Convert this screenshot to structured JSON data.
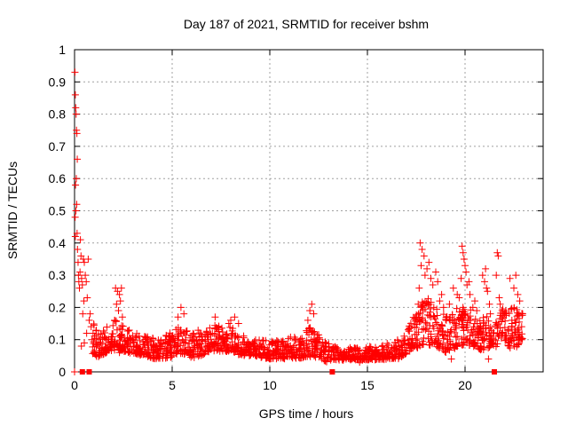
{
  "chart_data": {
    "type": "scatter",
    "title": "Day 187 of 2021, SRMTID for receiver bshm",
    "xlabel": "GPS time / hours",
    "ylabel": "SRMTID / TECUs",
    "xlim": [
      0,
      24
    ],
    "ylim": [
      0,
      1
    ],
    "x_ticks": [
      0,
      5,
      10,
      15,
      20
    ],
    "y_ticks": [
      0,
      0.1,
      0.2,
      0.3,
      0.4,
      0.5,
      0.6,
      0.7,
      0.8,
      0.9,
      1
    ],
    "x_tick_labels": [
      "0",
      "5",
      "10",
      "15",
      "20"
    ],
    "y_tick_labels": [
      "0",
      "0.1",
      "0.2",
      "0.3",
      "0.4",
      "0.5",
      "0.6",
      "0.7",
      "0.8",
      "0.9",
      "1"
    ],
    "grid": true,
    "marker_color": "#ff0000",
    "series": [
      {
        "name": "SRMTID",
        "marker": "plus",
        "points": [
          [
            0.02,
            0.93
          ],
          [
            0.04,
            0.86
          ],
          [
            0.06,
            0.82
          ],
          [
            0.08,
            0.8
          ],
          [
            0.1,
            0.75
          ],
          [
            0.12,
            0.74
          ],
          [
            0.14,
            0.66
          ],
          [
            0.05,
            0.58
          ],
          [
            0.09,
            0.6
          ],
          [
            0.03,
            0.48
          ],
          [
            0.07,
            0.5
          ],
          [
            0.11,
            0.52
          ],
          [
            0.13,
            0.43
          ],
          [
            0.04,
            0.42
          ],
          [
            0.15,
            0.38
          ],
          [
            0.18,
            0.34
          ],
          [
            0.2,
            0.3
          ],
          [
            0.22,
            0.28
          ],
          [
            0.25,
            0.26
          ],
          [
            0.28,
            0.31
          ],
          [
            0.3,
            0.41
          ],
          [
            0.33,
            0.36
          ],
          [
            0.36,
            0.29
          ],
          [
            0.4,
            0.27
          ],
          [
            0.45,
            0.35
          ],
          [
            0.5,
            0.34
          ],
          [
            0.55,
            0.3
          ],
          [
            0.6,
            0.28
          ],
          [
            0.65,
            0.23
          ],
          [
            0.7,
            0.35
          ],
          [
            0.42,
            0.18
          ],
          [
            0.48,
            0.22
          ],
          [
            0.75,
            0.16
          ],
          [
            0.8,
            0.18
          ],
          [
            0.85,
            0.14
          ],
          [
            0.35,
            0.08
          ],
          [
            0.5,
            0.09
          ],
          [
            0.62,
            0.12
          ],
          [
            0.9,
            0.1
          ],
          [
            0.95,
            0.12
          ],
          [
            2.1,
            0.26
          ],
          [
            2.2,
            0.25
          ],
          [
            2.3,
            0.24
          ],
          [
            2.4,
            0.26
          ],
          [
            2.15,
            0.21
          ],
          [
            2.25,
            0.19
          ],
          [
            2.35,
            0.22
          ],
          [
            2.45,
            0.17
          ],
          [
            2.05,
            0.16
          ],
          [
            5.45,
            0.2
          ],
          [
            5.6,
            0.18
          ],
          [
            5.3,
            0.17
          ],
          [
            7.2,
            0.17
          ],
          [
            8.0,
            0.16
          ],
          [
            8.2,
            0.17
          ],
          [
            8.4,
            0.15
          ],
          [
            7.9,
            0.15
          ],
          [
            12.05,
            0.19
          ],
          [
            12.15,
            0.21
          ],
          [
            12.25,
            0.18
          ],
          [
            11.95,
            0.16
          ],
          [
            17.7,
            0.4
          ],
          [
            17.8,
            0.38
          ],
          [
            17.9,
            0.36
          ],
          [
            17.75,
            0.33
          ],
          [
            17.95,
            0.3
          ],
          [
            18.05,
            0.32
          ],
          [
            18.15,
            0.34
          ],
          [
            18.25,
            0.29
          ],
          [
            18.35,
            0.27
          ],
          [
            17.65,
            0.26
          ],
          [
            18.5,
            0.31
          ],
          [
            18.6,
            0.28
          ],
          [
            18.7,
            0.22
          ],
          [
            18.8,
            0.24
          ],
          [
            18.4,
            0.2
          ],
          [
            18.9,
            0.2
          ],
          [
            17.6,
            0.21
          ],
          [
            17.85,
            0.19
          ],
          [
            19.2,
            0.21
          ],
          [
            19.4,
            0.26
          ],
          [
            19.6,
            0.24
          ],
          [
            19.85,
            0.39
          ],
          [
            19.9,
            0.37
          ],
          [
            19.95,
            0.35
          ],
          [
            20.0,
            0.33
          ],
          [
            20.05,
            0.31
          ],
          [
            19.8,
            0.29
          ],
          [
            20.1,
            0.27
          ],
          [
            20.2,
            0.28
          ],
          [
            20.25,
            0.24
          ],
          [
            19.7,
            0.23
          ],
          [
            20.4,
            0.2
          ],
          [
            20.5,
            0.22
          ],
          [
            20.6,
            0.19
          ],
          [
            21.0,
            0.28
          ],
          [
            21.1,
            0.26
          ],
          [
            20.9,
            0.3
          ],
          [
            21.05,
            0.32
          ],
          [
            21.15,
            0.25
          ],
          [
            21.25,
            0.21
          ],
          [
            21.3,
            0.18
          ],
          [
            21.65,
            0.37
          ],
          [
            21.7,
            0.36
          ],
          [
            21.6,
            0.3
          ],
          [
            21.75,
            0.23
          ],
          [
            21.8,
            0.21
          ],
          [
            21.9,
            0.19
          ],
          [
            22.3,
            0.29
          ],
          [
            22.5,
            0.26
          ],
          [
            22.6,
            0.3
          ],
          [
            22.7,
            0.24
          ],
          [
            22.8,
            0.22
          ],
          [
            22.4,
            0.16
          ],
          [
            22.2,
            0.13
          ],
          [
            22.9,
            0.14
          ],
          [
            22.95,
            0.18
          ],
          [
            0.0,
            0.0
          ],
          [
            2.3,
            0.06
          ],
          [
            5.0,
            0.05
          ],
          [
            10.0,
            0.04
          ],
          [
            14.6,
            0.03
          ],
          [
            19.3,
            0.04
          ],
          [
            21.2,
            0.04
          ]
        ],
        "envelope": [
          [
            0.9,
            0.04,
            0.16
          ],
          [
            1.2,
            0.03,
            0.13
          ],
          [
            1.5,
            0.04,
            0.14
          ],
          [
            1.8,
            0.05,
            0.15
          ],
          [
            2.1,
            0.05,
            0.16
          ],
          [
            2.4,
            0.05,
            0.15
          ],
          [
            2.7,
            0.05,
            0.13
          ],
          [
            3.0,
            0.04,
            0.13
          ],
          [
            3.3,
            0.04,
            0.12
          ],
          [
            3.6,
            0.04,
            0.11
          ],
          [
            3.9,
            0.03,
            0.11
          ],
          [
            4.2,
            0.03,
            0.1
          ],
          [
            4.5,
            0.03,
            0.11
          ],
          [
            4.8,
            0.03,
            0.12
          ],
          [
            5.1,
            0.03,
            0.13
          ],
          [
            5.4,
            0.04,
            0.14
          ],
          [
            5.7,
            0.04,
            0.13
          ],
          [
            6.0,
            0.03,
            0.12
          ],
          [
            6.3,
            0.03,
            0.13
          ],
          [
            6.6,
            0.04,
            0.13
          ],
          [
            6.9,
            0.05,
            0.14
          ],
          [
            7.2,
            0.05,
            0.15
          ],
          [
            7.5,
            0.05,
            0.14
          ],
          [
            7.8,
            0.05,
            0.14
          ],
          [
            8.1,
            0.05,
            0.14
          ],
          [
            8.4,
            0.04,
            0.13
          ],
          [
            8.7,
            0.04,
            0.11
          ],
          [
            9.0,
            0.04,
            0.1
          ],
          [
            9.3,
            0.04,
            0.1
          ],
          [
            9.6,
            0.03,
            0.1
          ],
          [
            9.9,
            0.03,
            0.1
          ],
          [
            10.2,
            0.03,
            0.1
          ],
          [
            10.5,
            0.03,
            0.1
          ],
          [
            10.8,
            0.03,
            0.1
          ],
          [
            11.1,
            0.03,
            0.11
          ],
          [
            11.4,
            0.03,
            0.11
          ],
          [
            11.7,
            0.03,
            0.12
          ],
          [
            12.0,
            0.03,
            0.14
          ],
          [
            12.3,
            0.03,
            0.13
          ],
          [
            12.6,
            0.03,
            0.11
          ],
          [
            12.9,
            0.02,
            0.09
          ],
          [
            13.3,
            0.03,
            0.09
          ],
          [
            13.6,
            0.03,
            0.07
          ],
          [
            13.9,
            0.03,
            0.07
          ],
          [
            14.2,
            0.03,
            0.08
          ],
          [
            14.5,
            0.03,
            0.08
          ],
          [
            14.8,
            0.03,
            0.07
          ],
          [
            15.1,
            0.03,
            0.08
          ],
          [
            15.4,
            0.03,
            0.08
          ],
          [
            15.7,
            0.03,
            0.08
          ],
          [
            16.0,
            0.03,
            0.09
          ],
          [
            16.3,
            0.03,
            0.1
          ],
          [
            16.6,
            0.03,
            0.1
          ],
          [
            16.9,
            0.04,
            0.12
          ],
          [
            17.2,
            0.05,
            0.15
          ],
          [
            17.5,
            0.05,
            0.19
          ],
          [
            17.8,
            0.06,
            0.22
          ],
          [
            18.1,
            0.06,
            0.23
          ],
          [
            18.4,
            0.05,
            0.22
          ],
          [
            18.7,
            0.05,
            0.2
          ],
          [
            19.0,
            0.04,
            0.17
          ],
          [
            19.3,
            0.05,
            0.18
          ],
          [
            19.6,
            0.05,
            0.2
          ],
          [
            19.9,
            0.06,
            0.22
          ],
          [
            20.2,
            0.06,
            0.2
          ],
          [
            20.5,
            0.06,
            0.18
          ],
          [
            20.8,
            0.05,
            0.17
          ],
          [
            21.1,
            0.05,
            0.18
          ],
          [
            21.4,
            0.05,
            0.12
          ],
          [
            21.8,
            0.08,
            0.2
          ],
          [
            22.1,
            0.07,
            0.2
          ],
          [
            22.4,
            0.04,
            0.21
          ],
          [
            22.7,
            0.06,
            0.19
          ],
          [
            22.95,
            0.09,
            0.18
          ]
        ]
      }
    ],
    "gap_markers": [
      0.4,
      0.75,
      13.2,
      21.5
    ]
  }
}
